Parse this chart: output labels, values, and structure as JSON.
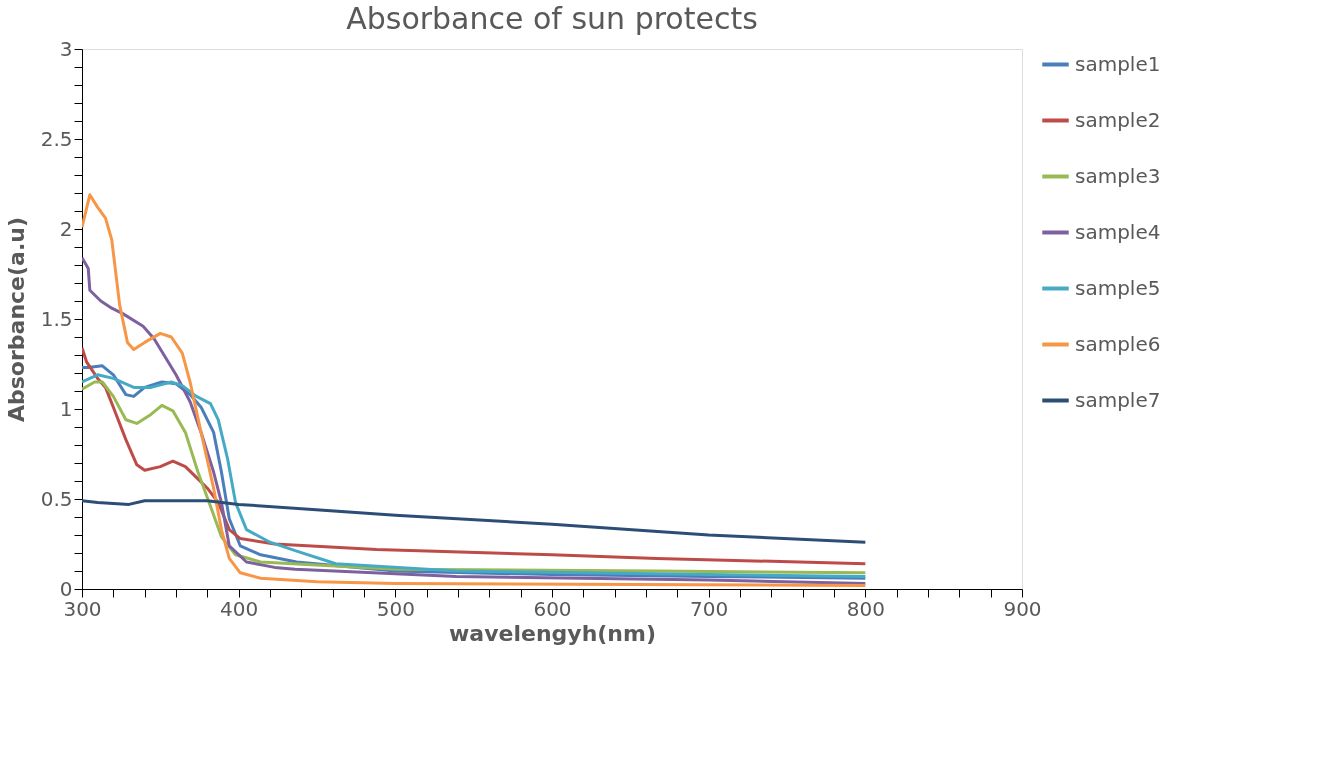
{
  "chart_data": {
    "type": "line",
    "title": "Absorbance of sun protects",
    "xlabel": "wavelengyh(nm)",
    "ylabel": "Absorbance(a.u)",
    "xlim": [
      300,
      900
    ],
    "ylim": [
      0,
      3
    ],
    "xticks": [
      300,
      {
        "value": 320,
        "label": null
      },
      {
        "value": 340,
        "label": null
      },
      {
        "value": 360,
        "label": null
      },
      {
        "value": 380,
        "label": null
      },
      400,
      {
        "value": 420,
        "label": null
      },
      {
        "value": 440,
        "label": null
      },
      {
        "value": 460,
        "label": null
      },
      {
        "value": 480,
        "label": null
      },
      500,
      {
        "value": 520,
        "label": null
      },
      {
        "value": 540,
        "label": null
      },
      {
        "value": 560,
        "label": null
      },
      {
        "value": 580,
        "label": null
      },
      600,
      {
        "value": 620,
        "label": null
      },
      {
        "value": 640,
        "label": null
      },
      {
        "value": 660,
        "label": null
      },
      {
        "value": 680,
        "label": null
      },
      700,
      {
        "value": 720,
        "label": null
      },
      {
        "value": 740,
        "label": null
      },
      {
        "value": 760,
        "label": null
      },
      {
        "value": 780,
        "label": null
      },
      800,
      {
        "value": 820,
        "label": null
      },
      {
        "value": 840,
        "label": null
      },
      {
        "value": 860,
        "label": null
      },
      {
        "value": 880,
        "label": null
      },
      900
    ],
    "yticks": [
      0,
      {
        "value": 0.1,
        "label": null
      },
      {
        "value": 0.2,
        "label": null
      },
      {
        "value": 0.3,
        "label": null
      },
      {
        "value": 0.4,
        "label": null
      },
      0.5,
      {
        "value": 0.6,
        "label": null
      },
      {
        "value": 0.7,
        "label": null
      },
      {
        "value": 0.8,
        "label": null
      },
      {
        "value": 0.9,
        "label": null
      },
      1,
      {
        "value": 1.1,
        "label": null
      },
      {
        "value": 1.2,
        "label": null
      },
      {
        "value": 1.3,
        "label": null
      },
      {
        "value": 1.4,
        "label": null
      },
      1.5,
      {
        "value": 1.6,
        "label": null
      },
      {
        "value": 1.7,
        "label": null
      },
      {
        "value": 1.8,
        "label": null
      },
      {
        "value": 1.9,
        "label": null
      },
      2,
      {
        "value": 2.1,
        "label": null
      },
      {
        "value": 2.2,
        "label": null
      },
      {
        "value": 2.3,
        "label": null
      },
      {
        "value": 2.4,
        "label": null
      },
      2.5,
      {
        "value": 2.6,
        "label": null
      },
      {
        "value": 2.7,
        "label": null
      },
      {
        "value": 2.8,
        "label": null
      },
      {
        "value": 2.9,
        "label": null
      },
      3
    ],
    "grid": false,
    "legend": "right",
    "marker": "none",
    "line_style": "solid",
    "series": [
      {
        "name": "sample1",
        "color": "#4a7ebb",
        "x": [
          300,
          304,
          313,
          320,
          328,
          333,
          340,
          351,
          360,
          369,
          376,
          384,
          389,
          394,
          401,
          414,
          437,
          500,
          600,
          700,
          800
        ],
        "values": [
          1.23,
          1.23,
          1.24,
          1.19,
          1.08,
          1.07,
          1.12,
          1.15,
          1.14,
          1.08,
          1.01,
          0.87,
          0.65,
          0.39,
          0.24,
          0.19,
          0.15,
          0.1,
          0.08,
          0.07,
          0.06
        ]
      },
      {
        "name": "sample2",
        "color": "#be4b48",
        "x": [
          300,
          303,
          310,
          315,
          320,
          328,
          335,
          340,
          350,
          358,
          366,
          373,
          380,
          387,
          394,
          401,
          423,
          488,
          600,
          667,
          800
        ],
        "values": [
          1.34,
          1.26,
          1.17,
          1.12,
          1.01,
          0.83,
          0.69,
          0.66,
          0.68,
          0.71,
          0.68,
          0.62,
          0.56,
          0.48,
          0.33,
          0.28,
          0.25,
          0.22,
          0.19,
          0.17,
          0.14
        ]
      },
      {
        "name": "sample3",
        "color": "#98b954",
        "x": [
          300,
          308,
          313,
          320,
          328,
          335,
          344,
          351,
          358,
          366,
          374,
          382,
          389,
          398,
          414,
          500,
          667,
          800
        ],
        "values": [
          1.11,
          1.15,
          1.15,
          1.07,
          0.94,
          0.92,
          0.97,
          1.02,
          0.99,
          0.87,
          0.65,
          0.46,
          0.29,
          0.19,
          0.15,
          0.11,
          0.1,
          0.09
        ]
      },
      {
        "name": "sample4",
        "color": "#7d60a0",
        "x": [
          300,
          304,
          305,
          312,
          319,
          326,
          339,
          346,
          360,
          369,
          376,
          384,
          389,
          394,
          405,
          423,
          436,
          539,
          700,
          800
        ],
        "values": [
          1.84,
          1.78,
          1.66,
          1.6,
          1.56,
          1.53,
          1.46,
          1.39,
          1.19,
          1.04,
          0.87,
          0.65,
          0.48,
          0.24,
          0.15,
          0.12,
          0.11,
          0.07,
          0.05,
          0.03
        ]
      },
      {
        "name": "sample5",
        "color": "#46aac5",
        "x": [
          300,
          310,
          320,
          333,
          344,
          357,
          364,
          373,
          382,
          387,
          393,
          398,
          405,
          420,
          437,
          462,
          539,
          700,
          800
        ],
        "values": [
          1.15,
          1.19,
          1.17,
          1.12,
          1.12,
          1.15,
          1.13,
          1.07,
          1.03,
          0.94,
          0.72,
          0.48,
          0.33,
          0.26,
          0.21,
          0.14,
          0.1,
          0.08,
          0.07
        ]
      },
      {
        "name": "sample6",
        "color": "#f79646",
        "x": [
          300,
          305,
          310,
          315,
          319,
          324,
          329,
          333,
          340,
          350,
          357,
          364,
          369,
          376,
          384,
          389,
          394,
          401,
          414,
          450,
          500,
          800
        ],
        "values": [
          2.01,
          2.19,
          2.12,
          2.06,
          1.94,
          1.58,
          1.37,
          1.33,
          1.37,
          1.42,
          1.4,
          1.31,
          1.15,
          0.87,
          0.56,
          0.33,
          0.17,
          0.09,
          0.06,
          0.04,
          0.03,
          0.02
        ]
      },
      {
        "name": "sample7",
        "color": "#2c4d75",
        "x": [
          300,
          310,
          330,
          340,
          380,
          400,
          500,
          600,
          700,
          800
        ],
        "values": [
          0.49,
          0.48,
          0.47,
          0.49,
          0.49,
          0.47,
          0.41,
          0.36,
          0.3,
          0.26
        ]
      }
    ]
  }
}
